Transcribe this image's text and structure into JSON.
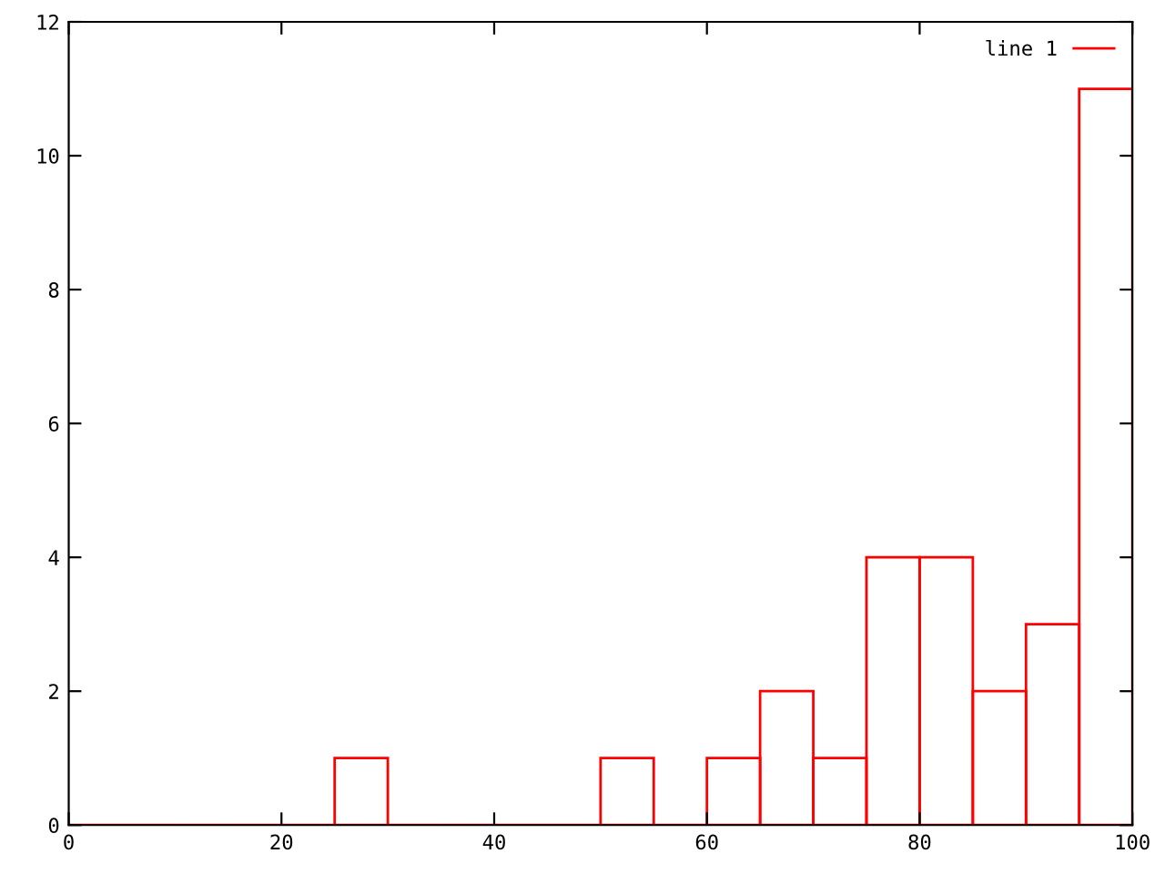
{
  "chart_data": {
    "type": "histogram",
    "bins": [
      0,
      5,
      10,
      15,
      20,
      25,
      30,
      35,
      40,
      45,
      50,
      55,
      60,
      65,
      70,
      75,
      80,
      85,
      90,
      95,
      100
    ],
    "series": [
      {
        "name": "line 1",
        "color": "#ff0000",
        "values": [
          0,
          0,
          0,
          0,
          0,
          1,
          0,
          0,
          0,
          0,
          1,
          0,
          1,
          2,
          1,
          4,
          4,
          2,
          3,
          11
        ]
      }
    ],
    "xlim": [
      0,
      100
    ],
    "xticks": [
      0,
      20,
      40,
      60,
      80,
      100
    ],
    "ylim": [
      0,
      12
    ],
    "yticks": [
      0,
      2,
      4,
      6,
      8,
      10,
      12
    ],
    "grid": false,
    "legend": "top right"
  }
}
